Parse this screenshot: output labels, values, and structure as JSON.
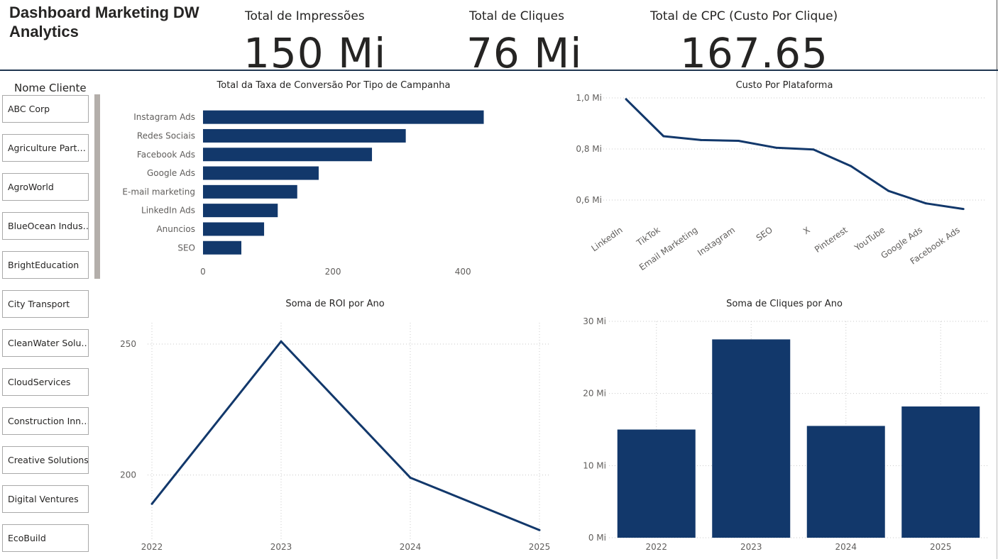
{
  "header": {
    "title": "Dashboard Marketing DW Analytics",
    "kpis": [
      {
        "label": "Total de Impressões",
        "value": "150 Mi"
      },
      {
        "label": "Total de Cliques",
        "value": "76 Mi"
      },
      {
        "label": "Total de CPC (Custo Por Clique)",
        "value": "167.65"
      }
    ]
  },
  "slicer": {
    "title": "Nome Cliente",
    "items": [
      "ABC Corp",
      "Agriculture Part…",
      "AgroWorld",
      "BlueOcean Indus…",
      "BrightEducation",
      "City Transport",
      "CleanWater Solu…",
      "CloudServices",
      "Construction Inn…",
      "Creative Solutions",
      "Digital Ventures",
      "EcoBuild"
    ]
  },
  "colors": {
    "series": "#12386b",
    "grid": "#c8c8c8",
    "text": "#605e5c"
  },
  "chart_data": [
    {
      "id": "conversion",
      "type": "bar",
      "orientation": "horizontal",
      "title": "Total da Taxa de Conversão Por Tipo de Campanha",
      "categories": [
        "Instagram Ads",
        "Redes Sociais",
        "Facebook Ads",
        "Google Ads",
        "E-mail marketing",
        "LinkedIn Ads",
        "Anuncios",
        "SEO"
      ],
      "values": [
        432,
        312,
        260,
        178,
        145,
        115,
        94,
        59
      ],
      "xlim": [
        0,
        450
      ],
      "xticks": [
        0,
        200,
        400
      ],
      "grid": false
    },
    {
      "id": "cost",
      "type": "line",
      "title": "Custo Por Plataforma",
      "categories": [
        "LinkedIn",
        "TikTok",
        "Email Marketing",
        "Instagram",
        "SEO",
        "X",
        "Pinterest",
        "YouTube",
        "Google Ads",
        "Facebook Ads"
      ],
      "values": [
        0.995,
        0.85,
        0.835,
        0.832,
        0.805,
        0.798,
        0.733,
        0.636,
        0.587,
        0.565
      ],
      "ylim": [
        0.55,
        1.0
      ],
      "yticks": [
        0.6,
        0.8,
        1.0
      ],
      "ytick_labels": [
        "0,6 Mi",
        "0,8 Mi",
        "1,0 Mi"
      ],
      "grid": true
    },
    {
      "id": "roi",
      "type": "line",
      "title": "Soma de ROI por Ano",
      "x": [
        "2022",
        "2023",
        "2024",
        "2025"
      ],
      "values": [
        189,
        251,
        199,
        179
      ],
      "ylim": [
        175,
        260
      ],
      "yticks": [
        200,
        250
      ],
      "grid": true
    },
    {
      "id": "clicks",
      "type": "bar",
      "title": "Soma de Cliques por Ano",
      "categories": [
        "2022",
        "2023",
        "2024",
        "2025"
      ],
      "values": [
        15.0,
        27.5,
        15.5,
        18.2
      ],
      "ylim": [
        0,
        30
      ],
      "yticks": [
        0,
        10,
        20,
        30
      ],
      "ytick_labels": [
        "0 Mi",
        "10 Mi",
        "20 Mi",
        "30 Mi"
      ],
      "grid": true
    }
  ]
}
